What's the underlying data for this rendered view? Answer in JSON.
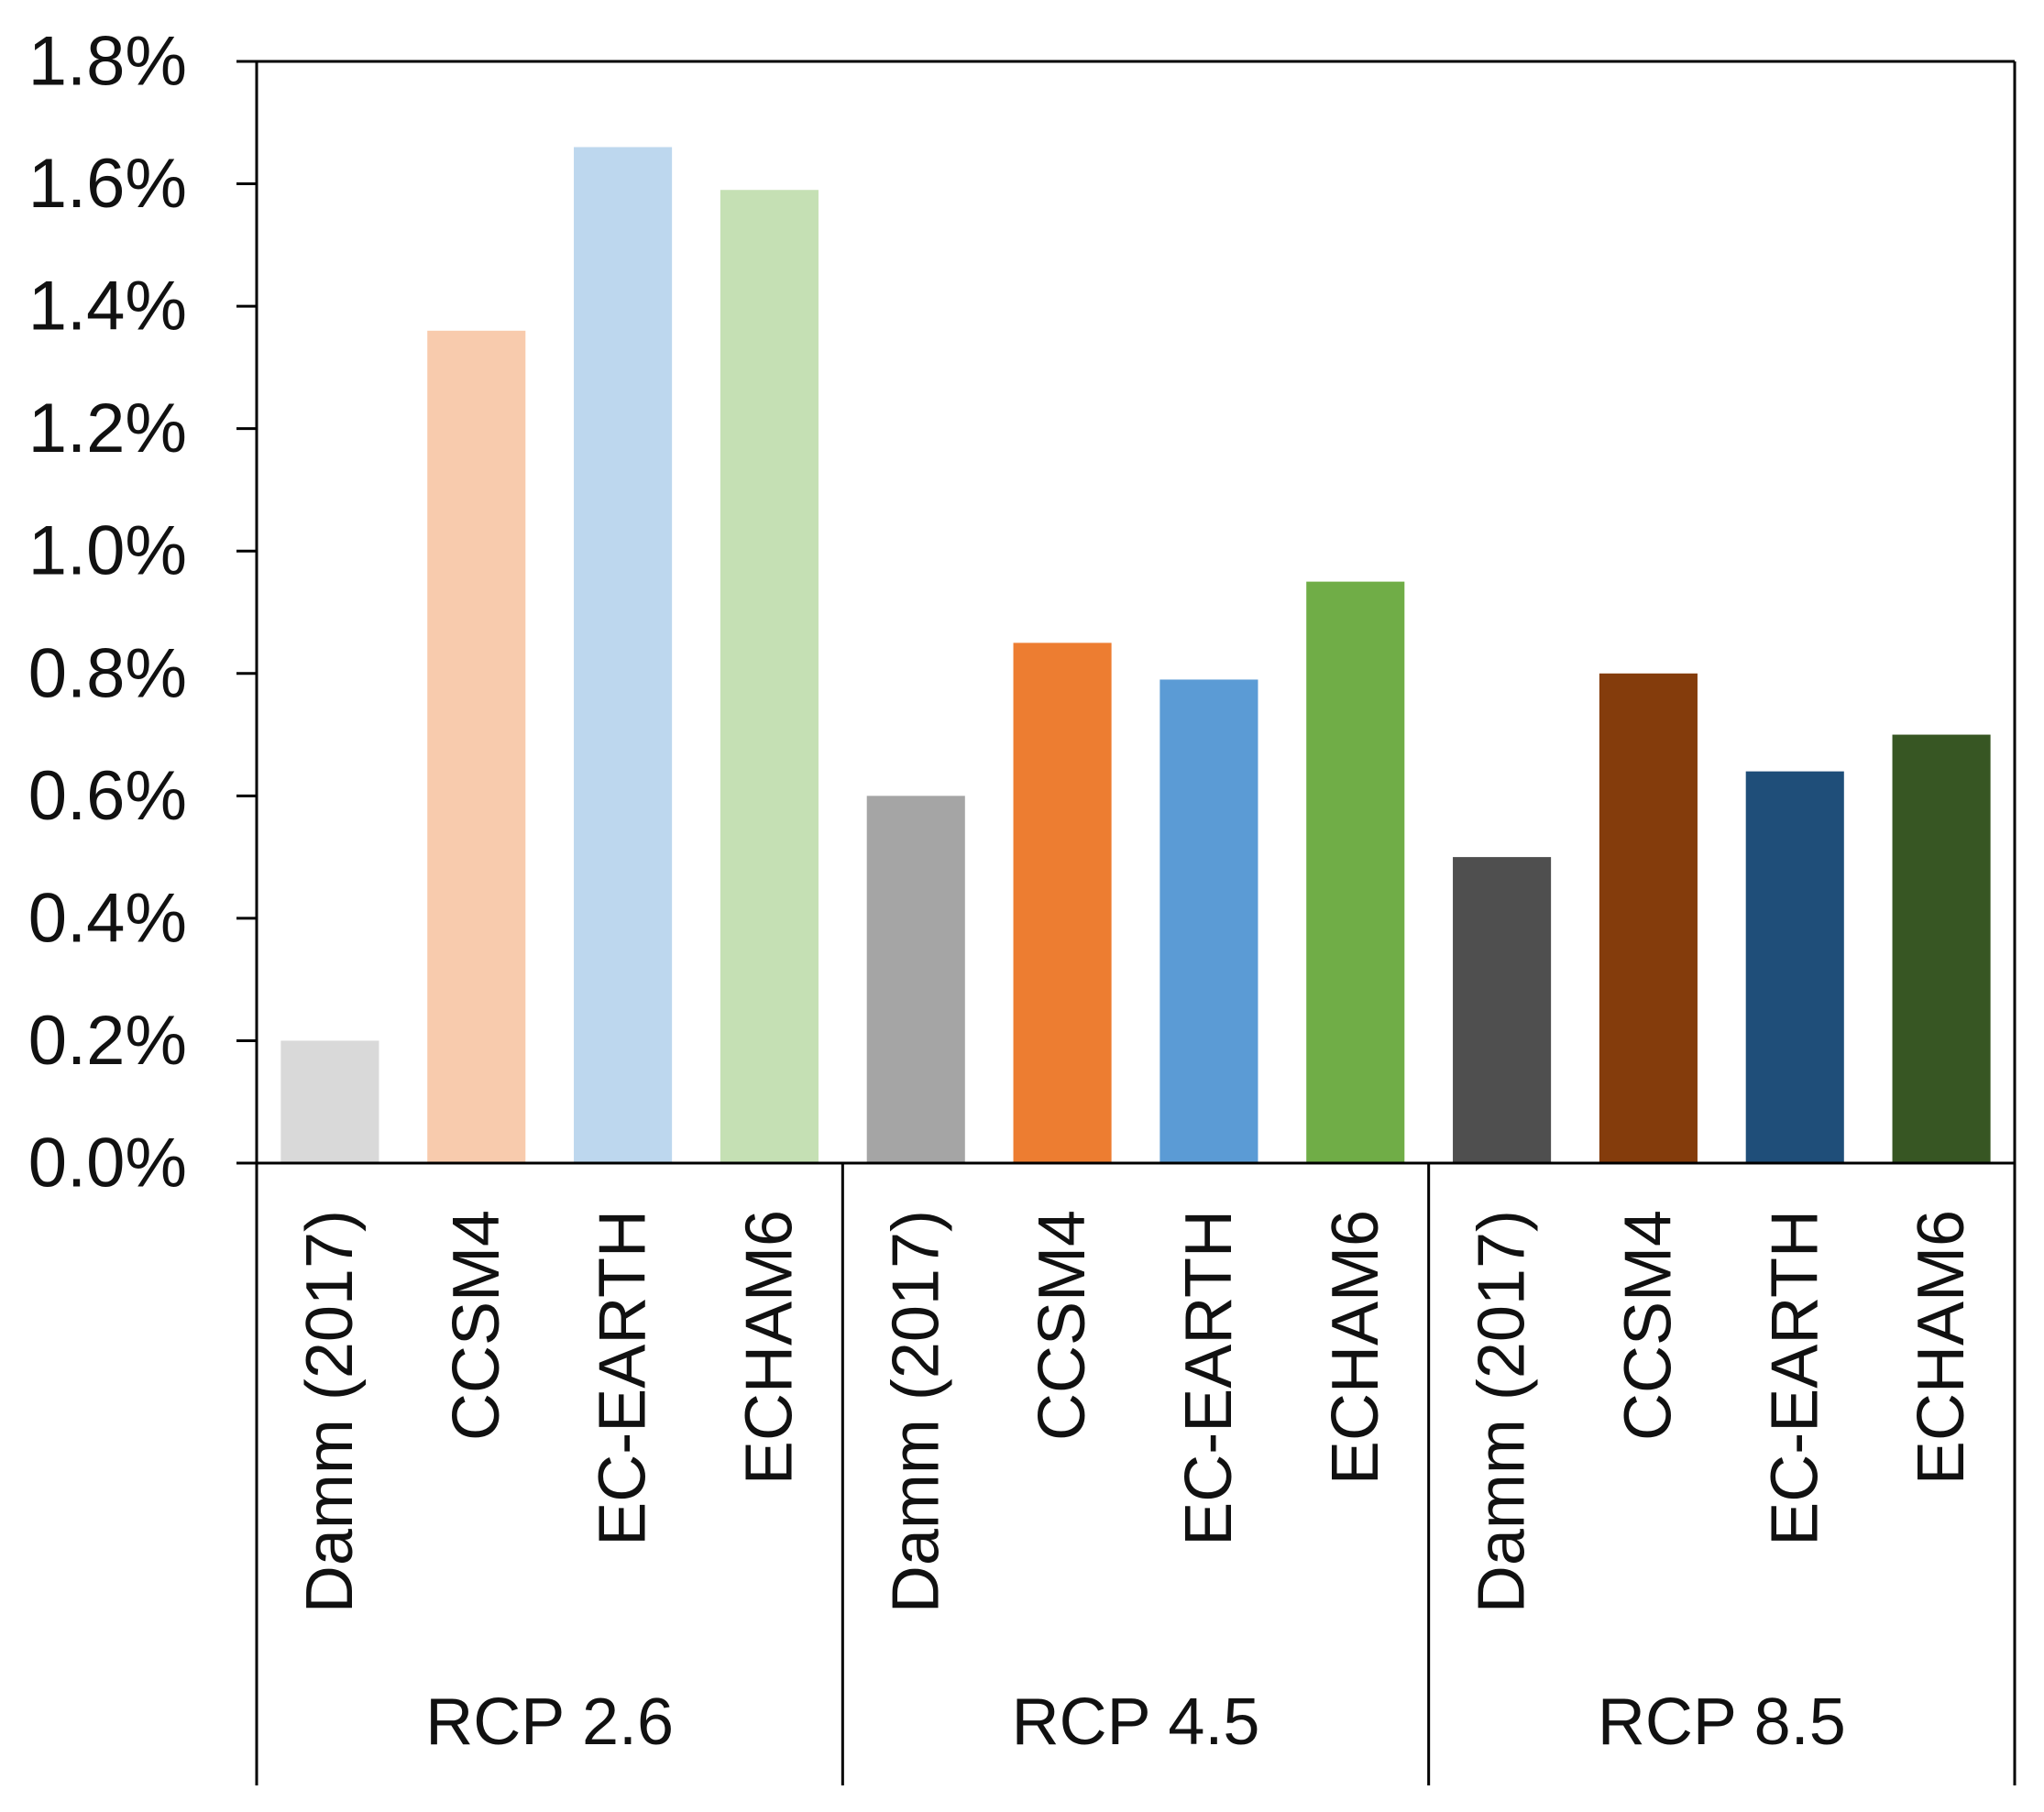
{
  "chart_data": {
    "type": "bar",
    "title": "",
    "xlabel": "",
    "ylabel": "",
    "ylim": [
      0,
      0.018
    ],
    "yticks": [
      "0.0%",
      "0.2%",
      "0.4%",
      "0.6%",
      "0.8%",
      "1.0%",
      "1.2%",
      "1.4%",
      "1.6%",
      "1.8%"
    ],
    "ytick_values": [
      0,
      0.002,
      0.004,
      0.006,
      0.008,
      0.01,
      0.012,
      0.014,
      0.016,
      0.018
    ],
    "grid": false,
    "groups": [
      {
        "label": "RCP 2.6",
        "bars": [
          {
            "category": "Damm (2017)",
            "value": 0.002,
            "color": "#d9d9d9"
          },
          {
            "category": "CCSM4",
            "value": 0.0136,
            "color": "#f8cbad"
          },
          {
            "category": "EC-EARTH",
            "value": 0.0166,
            "color": "#bdd7ee"
          },
          {
            "category": "ECHAM6",
            "value": 0.0159,
            "color": "#c5e0b4"
          }
        ]
      },
      {
        "label": "RCP 4.5",
        "bars": [
          {
            "category": "Damm (2017)",
            "value": 0.006,
            "color": "#a5a5a5"
          },
          {
            "category": "CCSM4",
            "value": 0.0085,
            "color": "#ed7d31"
          },
          {
            "category": "EC-EARTH",
            "value": 0.0079,
            "color": "#5b9bd5"
          },
          {
            "category": "ECHAM6",
            "value": 0.0095,
            "color": "#70ad47"
          }
        ]
      },
      {
        "label": "RCP 8.5",
        "bars": [
          {
            "category": "Damm (2017)",
            "value": 0.005,
            "color": "#4f4f4f"
          },
          {
            "category": "CCSM4",
            "value": 0.008,
            "color": "#843c0c"
          },
          {
            "category": "EC-EARTH",
            "value": 0.0064,
            "color": "#1f4e79"
          },
          {
            "category": "ECHAM6",
            "value": 0.007,
            "color": "#375623"
          }
        ]
      }
    ]
  }
}
